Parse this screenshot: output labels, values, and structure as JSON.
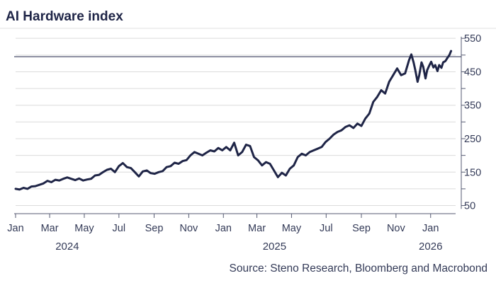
{
  "chart_data": {
    "type": "line",
    "title": "AI Hardware index",
    "source": "Source: Steno Research, Bloomberg and Macrobond",
    "y_ticks": [
      550,
      450,
      350,
      250,
      150,
      50
    ],
    "ylim": [
      30,
      580
    ],
    "x_range": [
      "2024-01-01",
      "2026-02-14"
    ],
    "x_ticks": [
      {
        "label": "Jan",
        "date": "2024-01-01"
      },
      {
        "label": "Mar",
        "date": "2024-03-01"
      },
      {
        "label": "May",
        "date": "2024-05-01"
      },
      {
        "label": "Jul",
        "date": "2024-07-01"
      },
      {
        "label": "Sep",
        "date": "2024-09-01"
      },
      {
        "label": "Nov",
        "date": "2024-11-01"
      },
      {
        "label": "Jan",
        "date": "2025-01-01"
      },
      {
        "label": "Mar",
        "date": "2025-03-01"
      },
      {
        "label": "May",
        "date": "2025-05-01"
      },
      {
        "label": "Jul",
        "date": "2025-07-01"
      },
      {
        "label": "Sep",
        "date": "2025-09-01"
      },
      {
        "label": "Nov",
        "date": "2025-11-01"
      },
      {
        "label": "Jan",
        "date": "2026-01-01"
      }
    ],
    "year_labels": [
      {
        "label": "2024",
        "date": "2024-04-01"
      },
      {
        "label": "2025",
        "date": "2025-04-01"
      },
      {
        "label": "2026",
        "date": "2026-01-01"
      }
    ],
    "reference_line": 495,
    "colors": {
      "line": "#1f2547",
      "grid": "#dcdcdc",
      "ref": "#1f2547",
      "text": "#333a57"
    },
    "series": [
      {
        "name": "AI Hardware index",
        "points": [
          [
            "2024-01-01",
            100
          ],
          [
            "2024-01-08",
            98
          ],
          [
            "2024-01-15",
            103
          ],
          [
            "2024-01-22",
            100
          ],
          [
            "2024-01-29",
            107
          ],
          [
            "2024-02-05",
            108
          ],
          [
            "2024-02-12",
            112
          ],
          [
            "2024-02-19",
            116
          ],
          [
            "2024-02-26",
            124
          ],
          [
            "2024-03-04",
            120
          ],
          [
            "2024-03-11",
            127
          ],
          [
            "2024-03-18",
            125
          ],
          [
            "2024-03-25",
            130
          ],
          [
            "2024-04-01",
            134
          ],
          [
            "2024-04-08",
            130
          ],
          [
            "2024-04-15",
            126
          ],
          [
            "2024-04-22",
            131
          ],
          [
            "2024-04-29",
            125
          ],
          [
            "2024-05-06",
            128
          ],
          [
            "2024-05-13",
            130
          ],
          [
            "2024-05-20",
            140
          ],
          [
            "2024-05-27",
            142
          ],
          [
            "2024-06-03",
            150
          ],
          [
            "2024-06-10",
            157
          ],
          [
            "2024-06-17",
            160
          ],
          [
            "2024-06-24",
            150
          ],
          [
            "2024-07-01",
            168
          ],
          [
            "2024-07-08",
            177
          ],
          [
            "2024-07-15",
            165
          ],
          [
            "2024-07-22",
            162
          ],
          [
            "2024-07-29",
            150
          ],
          [
            "2024-08-05",
            137
          ],
          [
            "2024-08-12",
            152
          ],
          [
            "2024-08-19",
            155
          ],
          [
            "2024-08-26",
            147
          ],
          [
            "2024-09-02",
            145
          ],
          [
            "2024-09-09",
            150
          ],
          [
            "2024-09-16",
            153
          ],
          [
            "2024-09-23",
            165
          ],
          [
            "2024-09-30",
            168
          ],
          [
            "2024-10-07",
            178
          ],
          [
            "2024-10-14",
            175
          ],
          [
            "2024-10-21",
            183
          ],
          [
            "2024-10-28",
            186
          ],
          [
            "2024-11-04",
            200
          ],
          [
            "2024-11-11",
            210
          ],
          [
            "2024-11-18",
            205
          ],
          [
            "2024-11-25",
            200
          ],
          [
            "2024-12-02",
            208
          ],
          [
            "2024-12-09",
            215
          ],
          [
            "2024-12-16",
            212
          ],
          [
            "2024-12-23",
            222
          ],
          [
            "2024-12-30",
            215
          ],
          [
            "2025-01-06",
            225
          ],
          [
            "2025-01-13",
            215
          ],
          [
            "2025-01-20",
            238
          ],
          [
            "2025-01-27",
            200
          ],
          [
            "2025-02-03",
            210
          ],
          [
            "2025-02-10",
            232
          ],
          [
            "2025-02-17",
            228
          ],
          [
            "2025-02-24",
            195
          ],
          [
            "2025-03-03",
            185
          ],
          [
            "2025-03-10",
            170
          ],
          [
            "2025-03-17",
            180
          ],
          [
            "2025-03-24",
            175
          ],
          [
            "2025-03-31",
            155
          ],
          [
            "2025-04-07",
            135
          ],
          [
            "2025-04-14",
            148
          ],
          [
            "2025-04-21",
            140
          ],
          [
            "2025-04-28",
            160
          ],
          [
            "2025-05-05",
            170
          ],
          [
            "2025-05-12",
            195
          ],
          [
            "2025-05-19",
            205
          ],
          [
            "2025-05-26",
            200
          ],
          [
            "2025-06-02",
            210
          ],
          [
            "2025-06-09",
            215
          ],
          [
            "2025-06-16",
            220
          ],
          [
            "2025-06-23",
            225
          ],
          [
            "2025-06-30",
            240
          ],
          [
            "2025-07-07",
            250
          ],
          [
            "2025-07-14",
            262
          ],
          [
            "2025-07-21",
            270
          ],
          [
            "2025-07-28",
            275
          ],
          [
            "2025-08-04",
            285
          ],
          [
            "2025-08-11",
            290
          ],
          [
            "2025-08-18",
            282
          ],
          [
            "2025-08-25",
            295
          ],
          [
            "2025-09-01",
            288
          ],
          [
            "2025-09-08",
            310
          ],
          [
            "2025-09-15",
            325
          ],
          [
            "2025-09-22",
            360
          ],
          [
            "2025-09-29",
            375
          ],
          [
            "2025-10-06",
            395
          ],
          [
            "2025-10-13",
            385
          ],
          [
            "2025-10-20",
            420
          ],
          [
            "2025-10-27",
            440
          ],
          [
            "2025-11-03",
            460
          ],
          [
            "2025-11-10",
            440
          ],
          [
            "2025-11-17",
            445
          ],
          [
            "2025-11-24",
            485
          ],
          [
            "2025-11-28",
            502
          ],
          [
            "2025-12-02",
            478
          ],
          [
            "2025-12-05",
            455
          ],
          [
            "2025-12-09",
            420
          ],
          [
            "2025-12-12",
            440
          ],
          [
            "2025-12-16",
            478
          ],
          [
            "2025-12-19",
            465
          ],
          [
            "2025-12-23",
            430
          ],
          [
            "2025-12-26",
            455
          ],
          [
            "2025-12-30",
            470
          ],
          [
            "2026-01-02",
            480
          ],
          [
            "2026-01-06",
            463
          ],
          [
            "2026-01-09",
            470
          ],
          [
            "2026-01-13",
            452
          ],
          [
            "2026-01-16",
            470
          ],
          [
            "2026-01-20",
            462
          ],
          [
            "2026-01-23",
            478
          ],
          [
            "2026-01-27",
            482
          ],
          [
            "2026-01-30",
            490
          ],
          [
            "2026-02-03",
            500
          ],
          [
            "2026-02-06",
            512
          ]
        ]
      }
    ]
  }
}
